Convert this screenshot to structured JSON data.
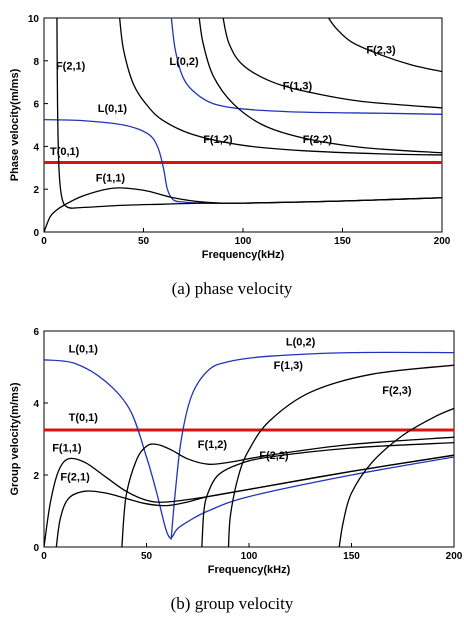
{
  "chart_data": [
    {
      "type": "line",
      "caption": "(a) phase velocity",
      "xlabel": "Frequency(kHz)",
      "ylabel": "Phase velocity(m/ms)",
      "xlim": [
        0,
        200
      ],
      "ylim": [
        0,
        10
      ],
      "xticks": [
        0,
        50,
        100,
        150,
        200
      ],
      "yticks": [
        0,
        2,
        4,
        6,
        8,
        10
      ],
      "grid": false,
      "series": [
        {
          "name": "T(0,1)",
          "color": "#e01010",
          "x": [
            0,
            200
          ],
          "y": [
            3.25,
            3.25
          ]
        },
        {
          "name": "L(0,1)",
          "color": "#2233bb",
          "x": [
            0,
            20,
            40,
            52,
            57,
            60,
            62,
            65,
            70,
            80,
            100,
            150,
            200
          ],
          "y": [
            5.25,
            5.2,
            5.0,
            4.6,
            4.0,
            3.0,
            2.0,
            1.5,
            1.4,
            1.35,
            1.35,
            1.45,
            1.6
          ]
        },
        {
          "name": "L(0,2)",
          "color": "#2233bb",
          "x": [
            64,
            66,
            70,
            76,
            85,
            100,
            130,
            170,
            200
          ],
          "y": [
            10,
            8.5,
            7.2,
            6.5,
            6.0,
            5.75,
            5.6,
            5.55,
            5.5
          ]
        },
        {
          "name": "F(1,1)",
          "color": "#000000",
          "x": [
            0,
            3,
            6,
            10,
            20,
            35,
            50,
            65,
            80,
            100,
            150,
            200
          ],
          "y": [
            0,
            0.7,
            1.0,
            1.25,
            1.7,
            2.05,
            1.95,
            1.6,
            1.4,
            1.35,
            1.45,
            1.6
          ]
        },
        {
          "name": "F(2,1)",
          "color": "#000000",
          "x": [
            6.5,
            6.8,
            7.5,
            9,
            12,
            20,
            40,
            60,
            80,
            100,
            150,
            200
          ],
          "y": [
            10,
            6,
            3,
            1.6,
            1.15,
            1.15,
            1.25,
            1.3,
            1.35,
            1.35,
            1.45,
            1.6
          ]
        },
        {
          "name": "F(1,2)",
          "color": "#000000",
          "x": [
            38,
            40,
            45,
            52,
            60,
            75,
            100,
            130,
            170,
            200
          ],
          "y": [
            10,
            8.5,
            6.9,
            5.9,
            5.2,
            4.55,
            4.05,
            3.8,
            3.65,
            3.6
          ]
        },
        {
          "name": "F(2,2)",
          "color": "#000000",
          "x": [
            78,
            80,
            85,
            95,
            110,
            130,
            160,
            200
          ],
          "y": [
            10,
            8.8,
            7.3,
            6.0,
            5.0,
            4.4,
            3.95,
            3.7
          ]
        },
        {
          "name": "F(1,3)",
          "color": "#000000",
          "x": [
            90,
            93,
            100,
            115,
            135,
            160,
            200
          ],
          "y": [
            10,
            8.8,
            7.8,
            7.0,
            6.5,
            6.1,
            5.8
          ]
        },
        {
          "name": "F(2,3)",
          "color": "#000000",
          "x": [
            143,
            147,
            155,
            170,
            185,
            200
          ],
          "y": [
            10,
            9.5,
            8.85,
            8.25,
            7.8,
            7.5
          ]
        }
      ],
      "annotations": [
        {
          "text": "F(2,1)",
          "x": 6,
          "y": 7.6
        },
        {
          "text": "L(0,1)",
          "x": 27,
          "y": 5.6
        },
        {
          "text": "T(0,1)",
          "x": 3,
          "y": 3.6
        },
        {
          "text": "F(1,1)",
          "x": 26,
          "y": 2.35
        },
        {
          "text": "L(0,2)",
          "x": 63,
          "y": 7.8
        },
        {
          "text": "F(1,2)",
          "x": 80,
          "y": 4.15
        },
        {
          "text": "F(1,3)",
          "x": 120,
          "y": 6.65
        },
        {
          "text": "F(2,2)",
          "x": 130,
          "y": 4.15
        },
        {
          "text": "F(2,3)",
          "x": 162,
          "y": 8.35
        }
      ]
    },
    {
      "type": "line",
      "caption": "(b) group velocity",
      "xlabel": "Frequency(kHz)",
      "ylabel": "Group velocity(m/ms)",
      "xlim": [
        0,
        200
      ],
      "ylim": [
        0,
        6
      ],
      "xticks": [
        0,
        50,
        100,
        150,
        200
      ],
      "yticks": [
        0,
        2,
        4,
        6
      ],
      "grid": false,
      "series": [
        {
          "name": "T(0,1)",
          "color": "#e01010",
          "x": [
            0,
            200
          ],
          "y": [
            3.25,
            3.25
          ]
        },
        {
          "name": "L(0,1)",
          "color": "#2233bb",
          "x": [
            0,
            15,
            30,
            42,
            50,
            55,
            58,
            60,
            62,
            65,
            70,
            80,
            100,
            150,
            200
          ],
          "y": [
            5.2,
            5.1,
            4.6,
            3.8,
            2.5,
            1.5,
            0.8,
            0.4,
            0.25,
            0.5,
            0.7,
            1.0,
            1.4,
            2.0,
            2.5
          ]
        },
        {
          "name": "L(0,2)",
          "color": "#2233bb",
          "x": [
            62,
            64,
            67,
            72,
            80,
            90,
            110,
            150,
            200
          ],
          "y": [
            0.2,
            1.5,
            3.0,
            4.2,
            4.9,
            5.15,
            5.3,
            5.4,
            5.4
          ]
        },
        {
          "name": "F(1,1)",
          "color": "#000000",
          "x": [
            0,
            3,
            7,
            12,
            20,
            30,
            40,
            50,
            60,
            80,
            100,
            150,
            200
          ],
          "y": [
            0,
            1.2,
            2.1,
            2.45,
            2.35,
            1.95,
            1.55,
            1.3,
            1.25,
            1.4,
            1.6,
            2.1,
            2.55
          ]
        },
        {
          "name": "F(2,1)",
          "color": "#000000",
          "x": [
            6,
            8,
            12,
            20,
            30,
            40,
            50,
            60,
            70,
            80,
            100,
            150,
            200
          ],
          "y": [
            0,
            0.8,
            1.35,
            1.55,
            1.5,
            1.35,
            1.2,
            1.15,
            1.25,
            1.4,
            1.6,
            2.1,
            2.55
          ]
        },
        {
          "name": "F(1,2)",
          "color": "#000000",
          "x": [
            38,
            40,
            45,
            50,
            55,
            62,
            70,
            80,
            90,
            110,
            150,
            200
          ],
          "y": [
            0,
            1.4,
            2.4,
            2.8,
            2.85,
            2.7,
            2.45,
            2.3,
            2.35,
            2.55,
            2.85,
            3.05
          ]
        },
        {
          "name": "F(2,2)",
          "color": "#000000",
          "x": [
            77,
            78,
            80,
            85,
            95,
            110,
            150,
            200
          ],
          "y": [
            0,
            1.0,
            1.5,
            2.0,
            2.3,
            2.5,
            2.75,
            2.9
          ]
        },
        {
          "name": "F(1,3)",
          "color": "#000000",
          "x": [
            90,
            91,
            95,
            100,
            110,
            130,
            160,
            200
          ],
          "y": [
            0,
            0.9,
            2.0,
            2.7,
            3.5,
            4.3,
            4.8,
            5.05
          ]
        },
        {
          "name": "F(2,3)",
          "color": "#000000",
          "x": [
            144,
            146,
            150,
            160,
            175,
            190,
            200
          ],
          "y": [
            0,
            0.7,
            1.5,
            2.35,
            3.1,
            3.6,
            3.85
          ]
        }
      ],
      "annotations": [
        {
          "text": "L(0,1)",
          "x": 12,
          "y": 5.4
        },
        {
          "text": "T(0,1)",
          "x": 12,
          "y": 3.5
        },
        {
          "text": "F(1,1)",
          "x": 4,
          "y": 2.65
        },
        {
          "text": "F(2,1)",
          "x": 8,
          "y": 1.85
        },
        {
          "text": "L(0,2)",
          "x": 118,
          "y": 5.6
        },
        {
          "text": "F(1,3)",
          "x": 112,
          "y": 4.95
        },
        {
          "text": "F(1,2)",
          "x": 75,
          "y": 2.75
        },
        {
          "text": "F(2,2)",
          "x": 105,
          "y": 2.45
        },
        {
          "text": "F(2,3)",
          "x": 165,
          "y": 4.25
        }
      ]
    }
  ]
}
